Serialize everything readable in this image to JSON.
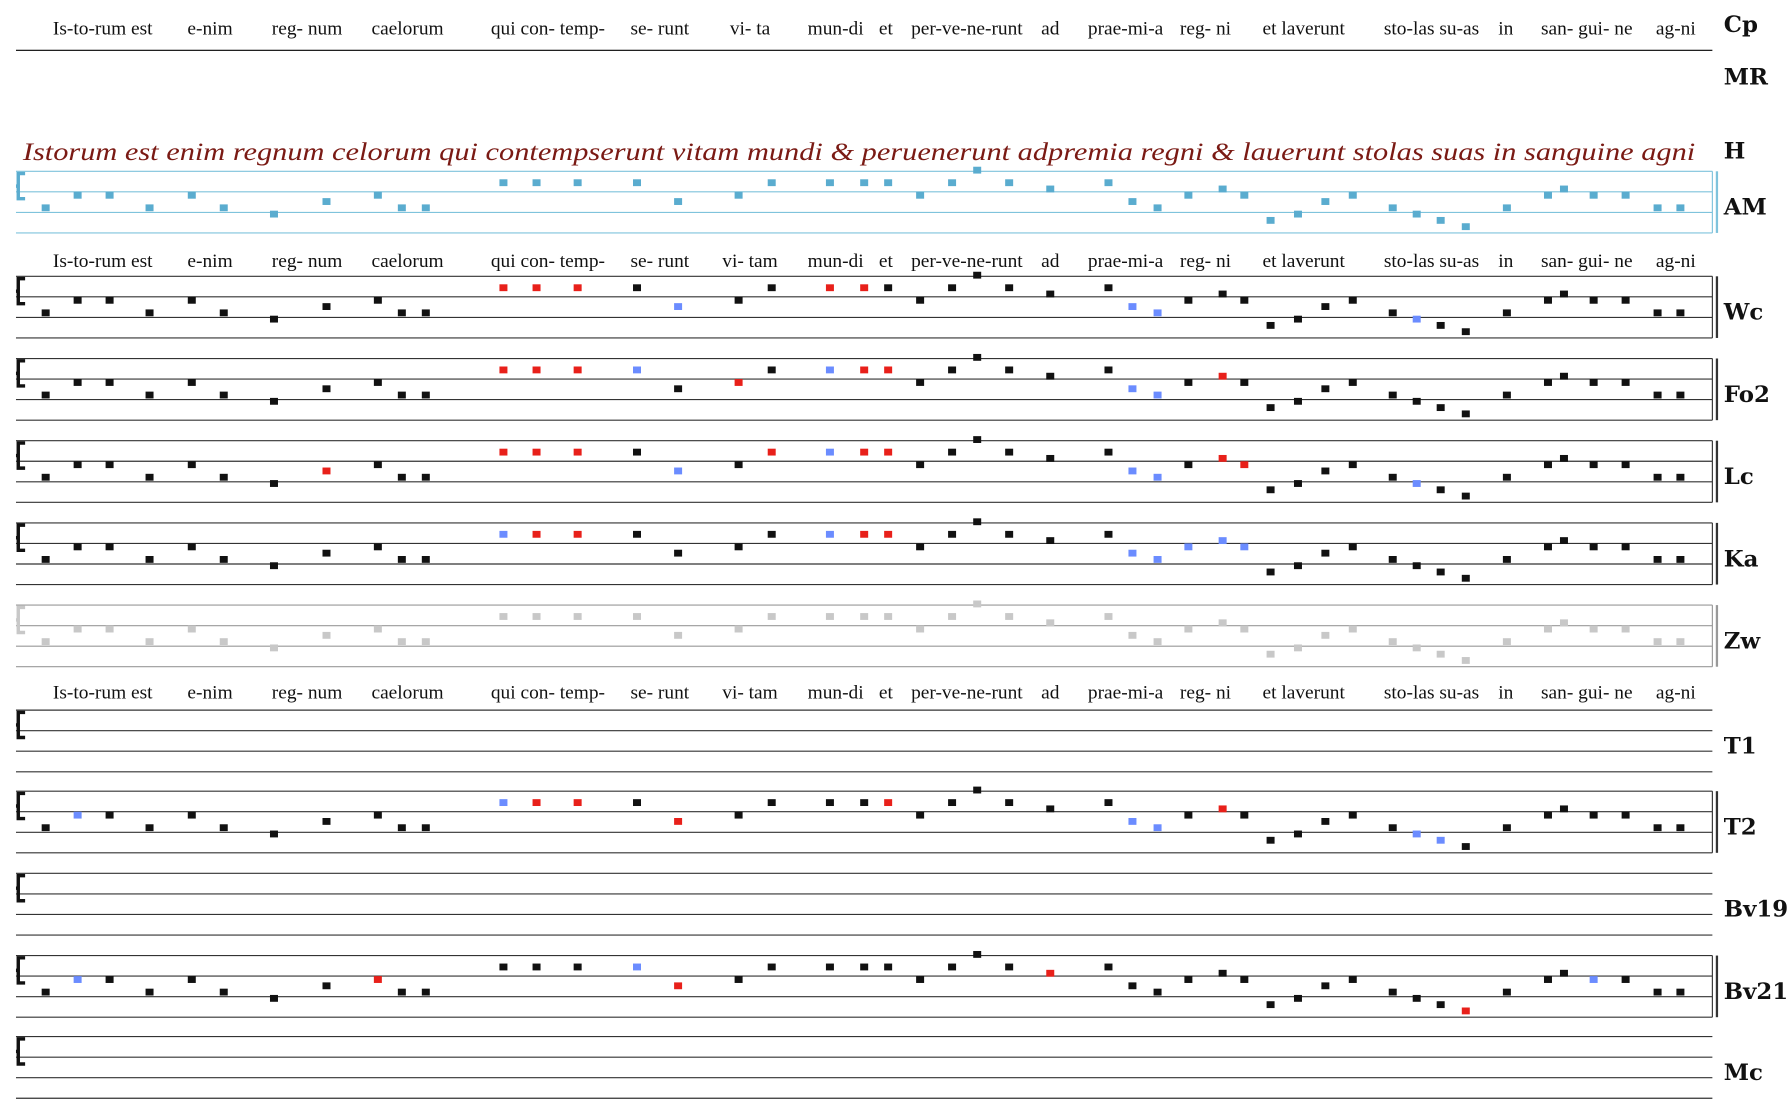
{
  "text_rows": [
    {
      "syllables": [
        "Is-to-rum est",
        "e-nim",
        "reg- num",
        "caelorum",
        "qui con- temp-",
        "se- runt",
        "vi- ta",
        "mun-di",
        "et",
        "per-ve-ne-runt",
        "ad",
        "prae-mi-a",
        "reg- ni",
        "et laverunt",
        "sto-las su-as",
        "in",
        "san- gui- ne",
        "ag-ni"
      ],
      "highlight": 6,
      "highlight_color": "#6b8cff"
    },
    {
      "syllables": [
        "Is-to-rum est",
        "e-nim",
        "reg- num",
        "caelorum",
        "qui con- temp-",
        "se- runt",
        "vi- tam",
        "mun-di",
        "et",
        "per-ve-ne-runt",
        "ad",
        "prae-mi-a",
        "reg- ni",
        "et laverunt",
        "sto-las su-as",
        "in",
        "san- gui- ne",
        "ag-ni"
      ]
    },
    {
      "syllables": [
        "Is-to-rum est",
        "e-nim",
        "reg- num",
        "caelorum",
        "qui con- temp-",
        "se- runt",
        "vi- tam",
        "mun-di",
        "et",
        "per-ve-ne-runt",
        "ad",
        "prae-mi-a",
        "reg- ni",
        "et laverunt",
        "sto-las su-as",
        "in",
        "san- gui- ne",
        "ag-ni"
      ]
    }
  ],
  "manuscript_text": "Istorum est enim regnum celorum qui contempserunt vitam mundi & peruenerunt adpremia regni & lauerunt stolas suas in sanguine agni",
  "manuscript_color": "#7a1a14",
  "melody": [
    2,
    3,
    3,
    2,
    3,
    2,
    1.5,
    2.5,
    3,
    2,
    2,
    4,
    4,
    4,
    4,
    2.5,
    3,
    4,
    4,
    4,
    4,
    3,
    4,
    5,
    4,
    3.5,
    4,
    2.5,
    2,
    3,
    3.5,
    3,
    1,
    1.5,
    2.5,
    3,
    2,
    1.5,
    1,
    0.5,
    2,
    3,
    3.5,
    3,
    3,
    2,
    2
  ],
  "sources": [
    {
      "label": "Cp"
    },
    {
      "label": "MR"
    },
    {
      "label": "H"
    },
    {
      "label": "AM",
      "staff": true,
      "notes": true,
      "color": "#5aaccf",
      "line_color": "#7fc3dc"
    },
    {
      "label": "Wc",
      "staff": true,
      "notes": true,
      "color": "#111111",
      "highlight": [
        11,
        12,
        13,
        18,
        19
      ],
      "highlight_color": "#e8201a",
      "alt": [
        15,
        27,
        28,
        37
      ],
      "alt_color": "#6b8cff"
    },
    {
      "label": "Fo2",
      "staff": true,
      "notes": true,
      "color": "#111111",
      "highlight": [
        11,
        12,
        13,
        16,
        19,
        20,
        30
      ],
      "highlight_color": "#e8201a",
      "alt": [
        14,
        18,
        27,
        28
      ],
      "alt_color": "#6b8cff"
    },
    {
      "label": "Lc",
      "staff": true,
      "notes": true,
      "color": "#111111",
      "highlight": [
        7,
        11,
        12,
        13,
        17,
        19,
        20,
        30,
        31
      ],
      "highlight_color": "#e8201a",
      "alt": [
        15,
        18,
        27,
        28,
        37
      ],
      "alt_color": "#6b8cff"
    },
    {
      "label": "Ka",
      "staff": true,
      "notes": true,
      "color": "#111111",
      "highlight": [
        12,
        13,
        19,
        20
      ],
      "highlight_color": "#e8201a",
      "alt": [
        11,
        18,
        27,
        28,
        29,
        30,
        31
      ],
      "alt_color": "#6b8cff"
    },
    {
      "label": "Zw",
      "staff": true,
      "notes": true,
      "color": "#c8c8c8"
    },
    {
      "label": "T1",
      "staff": true
    },
    {
      "label": "T2",
      "staff": true,
      "notes": true,
      "color": "#111111",
      "highlight": [
        12,
        13,
        15,
        20,
        30
      ],
      "highlight_color": "#e8201a",
      "alt": [
        1,
        11,
        27,
        28,
        37,
        38
      ],
      "alt_color": "#6b8cff"
    },
    {
      "label": "Bv19",
      "staff": true
    },
    {
      "label": "Bv21",
      "staff": true,
      "notes": true,
      "color": "#111111",
      "highlight": [
        8,
        15,
        25,
        39
      ],
      "highlight_color": "#e8201a",
      "alt": [
        1,
        14,
        43
      ],
      "alt_color": "#6b8cff"
    },
    {
      "label": "Mc",
      "staff": true
    }
  ]
}
